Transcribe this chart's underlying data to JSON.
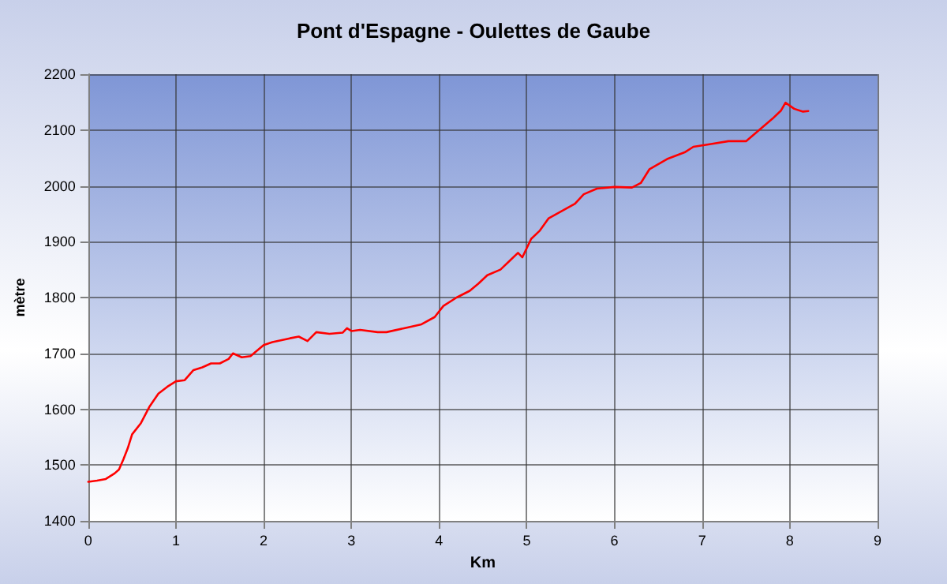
{
  "chart_data": {
    "type": "line",
    "title": "Pont d'Espagne - Oulettes de Gaube",
    "xlabel": "Km",
    "ylabel": "mètre",
    "x": [
      0,
      0.1,
      0.2,
      0.3,
      0.35,
      0.4,
      0.45,
      0.5,
      0.6,
      0.7,
      0.8,
      0.9,
      1.0,
      1.1,
      1.2,
      1.3,
      1.4,
      1.5,
      1.6,
      1.65,
      1.75,
      1.85,
      2.0,
      2.1,
      2.3,
      2.4,
      2.5,
      2.6,
      2.75,
      2.9,
      2.95,
      3.0,
      3.1,
      3.3,
      3.4,
      3.6,
      3.8,
      3.95,
      4.05,
      4.2,
      4.35,
      4.45,
      4.55,
      4.7,
      4.8,
      4.9,
      4.95,
      5.05,
      5.15,
      5.25,
      5.4,
      5.55,
      5.65,
      5.8,
      6.0,
      6.2,
      6.3,
      6.4,
      6.6,
      6.8,
      6.9,
      7.1,
      7.3,
      7.5,
      7.65,
      7.8,
      7.9,
      7.95,
      8.05,
      8.15,
      8.21
    ],
    "series": [
      {
        "color": "#ff0000",
        "values": [
          1470,
          1472,
          1475,
          1485,
          1492,
          1510,
          1530,
          1555,
          1575,
          1605,
          1628,
          1640,
          1650,
          1652,
          1670,
          1675,
          1682,
          1682,
          1690,
          1700,
          1693,
          1695,
          1715,
          1720,
          1727,
          1730,
          1722,
          1738,
          1735,
          1737,
          1745,
          1740,
          1742,
          1738,
          1738,
          1745,
          1752,
          1765,
          1785,
          1800,
          1812,
          1825,
          1840,
          1850,
          1865,
          1880,
          1872,
          1905,
          1920,
          1942,
          1955,
          1968,
          1985,
          1995,
          1998,
          1997,
          2005,
          2030,
          2048,
          2060,
          2070,
          2075,
          2080,
          2080,
          2100,
          2120,
          2135,
          2149,
          2138,
          2133,
          2134
        ]
      }
    ],
    "xlim": [
      0,
      9
    ],
    "xticks": [
      0,
      1,
      2,
      3,
      4,
      5,
      6,
      7,
      8,
      9
    ],
    "ylim": [
      1400,
      2200
    ],
    "yticks": [
      1400,
      1500,
      1600,
      1700,
      1800,
      1900,
      2000,
      2100,
      2200
    ],
    "grid": true,
    "marker": "none",
    "line_style": "solid"
  }
}
